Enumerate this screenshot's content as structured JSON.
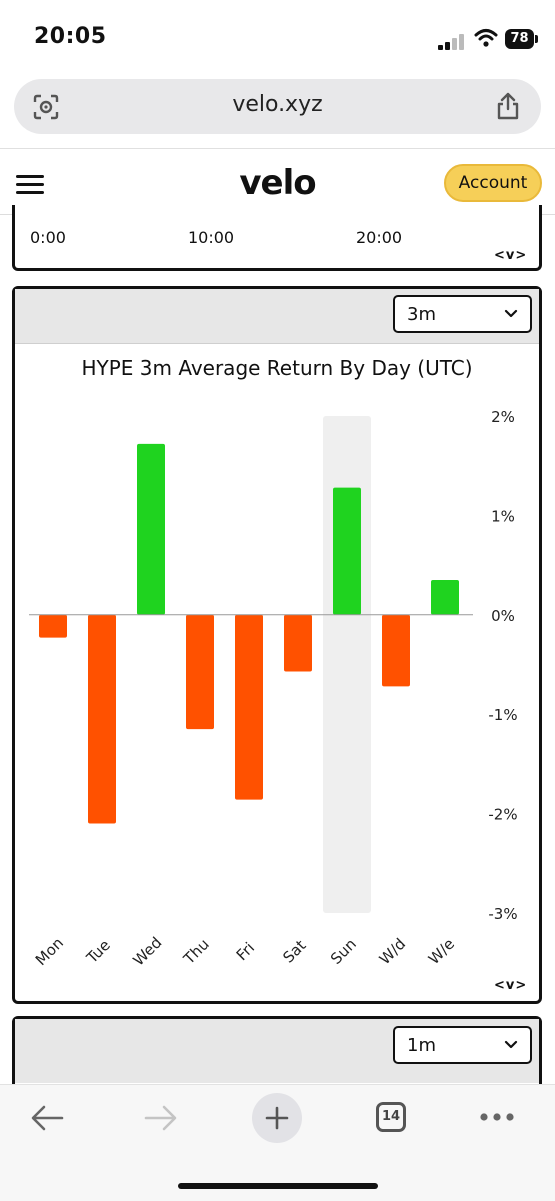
{
  "status_bar": {
    "time": "20:05",
    "battery": "78"
  },
  "browser": {
    "url": "velo.xyz",
    "icons": [
      "lens-icon",
      "share-icon",
      "back-arrow-icon",
      "forward-arrow-icon",
      "plus-icon",
      "tabs-icon",
      "more-icon"
    ],
    "tabs_count": "14"
  },
  "header": {
    "logo": "velo",
    "account_label": "Account",
    "accent": "#f6cf58"
  },
  "top_panel": {
    "x_ticks": [
      "0:00",
      "10:00",
      "20:00"
    ],
    "nav": "<v>"
  },
  "chart_panel": {
    "period_label": "3m",
    "title": "HYPE 3m Average Return By Day (UTC)",
    "nav": "<v>"
  },
  "bottom_panel": {
    "period_label": "1m"
  },
  "chart_data": {
    "type": "bar",
    "title": "HYPE 3m Average Return By Day (UTC)",
    "categories": [
      "Mon",
      "Tue",
      "Wed",
      "Thu",
      "Fri",
      "Sat",
      "Sun",
      "W/d",
      "W/e"
    ],
    "values": [
      -0.23,
      -2.1,
      1.72,
      -1.15,
      -1.86,
      -0.57,
      1.28,
      -0.72,
      0.35
    ],
    "highlight": "Sun",
    "ylim": [
      -3,
      2
    ],
    "y_ticks": [
      "2%",
      "1%",
      "0%",
      "-1%",
      "-2%",
      "-3%"
    ],
    "y_tick_values": [
      2,
      1,
      0,
      -1,
      -2,
      -3
    ],
    "positive_color": "#1fd31f",
    "negative_color": "#ff5100",
    "grid": false
  }
}
